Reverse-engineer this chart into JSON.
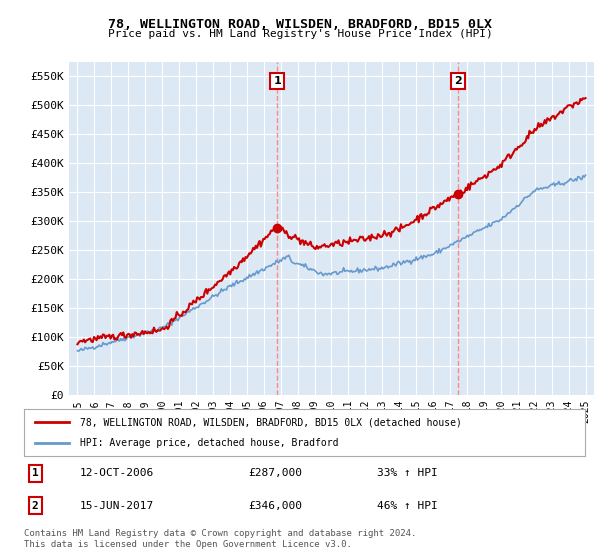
{
  "title": "78, WELLINGTON ROAD, WILSDEN, BRADFORD, BD15 0LX",
  "subtitle": "Price paid vs. HM Land Registry's House Price Index (HPI)",
  "ylabel_ticks": [
    "£0",
    "£50K",
    "£100K",
    "£150K",
    "£200K",
    "£250K",
    "£300K",
    "£350K",
    "£400K",
    "£450K",
    "£500K",
    "£550K"
  ],
  "ytick_values": [
    0,
    50000,
    100000,
    150000,
    200000,
    250000,
    300000,
    350000,
    400000,
    450000,
    500000,
    550000
  ],
  "plot_bg_color": "#dce9f5",
  "fig_bg_color": "#ffffff",
  "red_line_color": "#cc0000",
  "blue_line_color": "#6699cc",
  "sale1_x": 2006.79,
  "sale1_y": 287000,
  "sale1_label": "1",
  "sale1_date": "12-OCT-2006",
  "sale1_price": "£287,000",
  "sale1_hpi": "33% ↑ HPI",
  "sale2_x": 2017.46,
  "sale2_y": 346000,
  "sale2_label": "2",
  "sale2_date": "15-JUN-2017",
  "sale2_price": "£346,000",
  "sale2_hpi": "46% ↑ HPI",
  "vline_color": "#ff8888",
  "marker_color": "#cc0000",
  "legend_label1": "78, WELLINGTON ROAD, WILSDEN, BRADFORD, BD15 0LX (detached house)",
  "legend_label2": "HPI: Average price, detached house, Bradford",
  "footer": "Contains HM Land Registry data © Crown copyright and database right 2024.\nThis data is licensed under the Open Government Licence v3.0.",
  "xlim": [
    1994.5,
    2025.5
  ],
  "ylim": [
    0,
    575000
  ]
}
